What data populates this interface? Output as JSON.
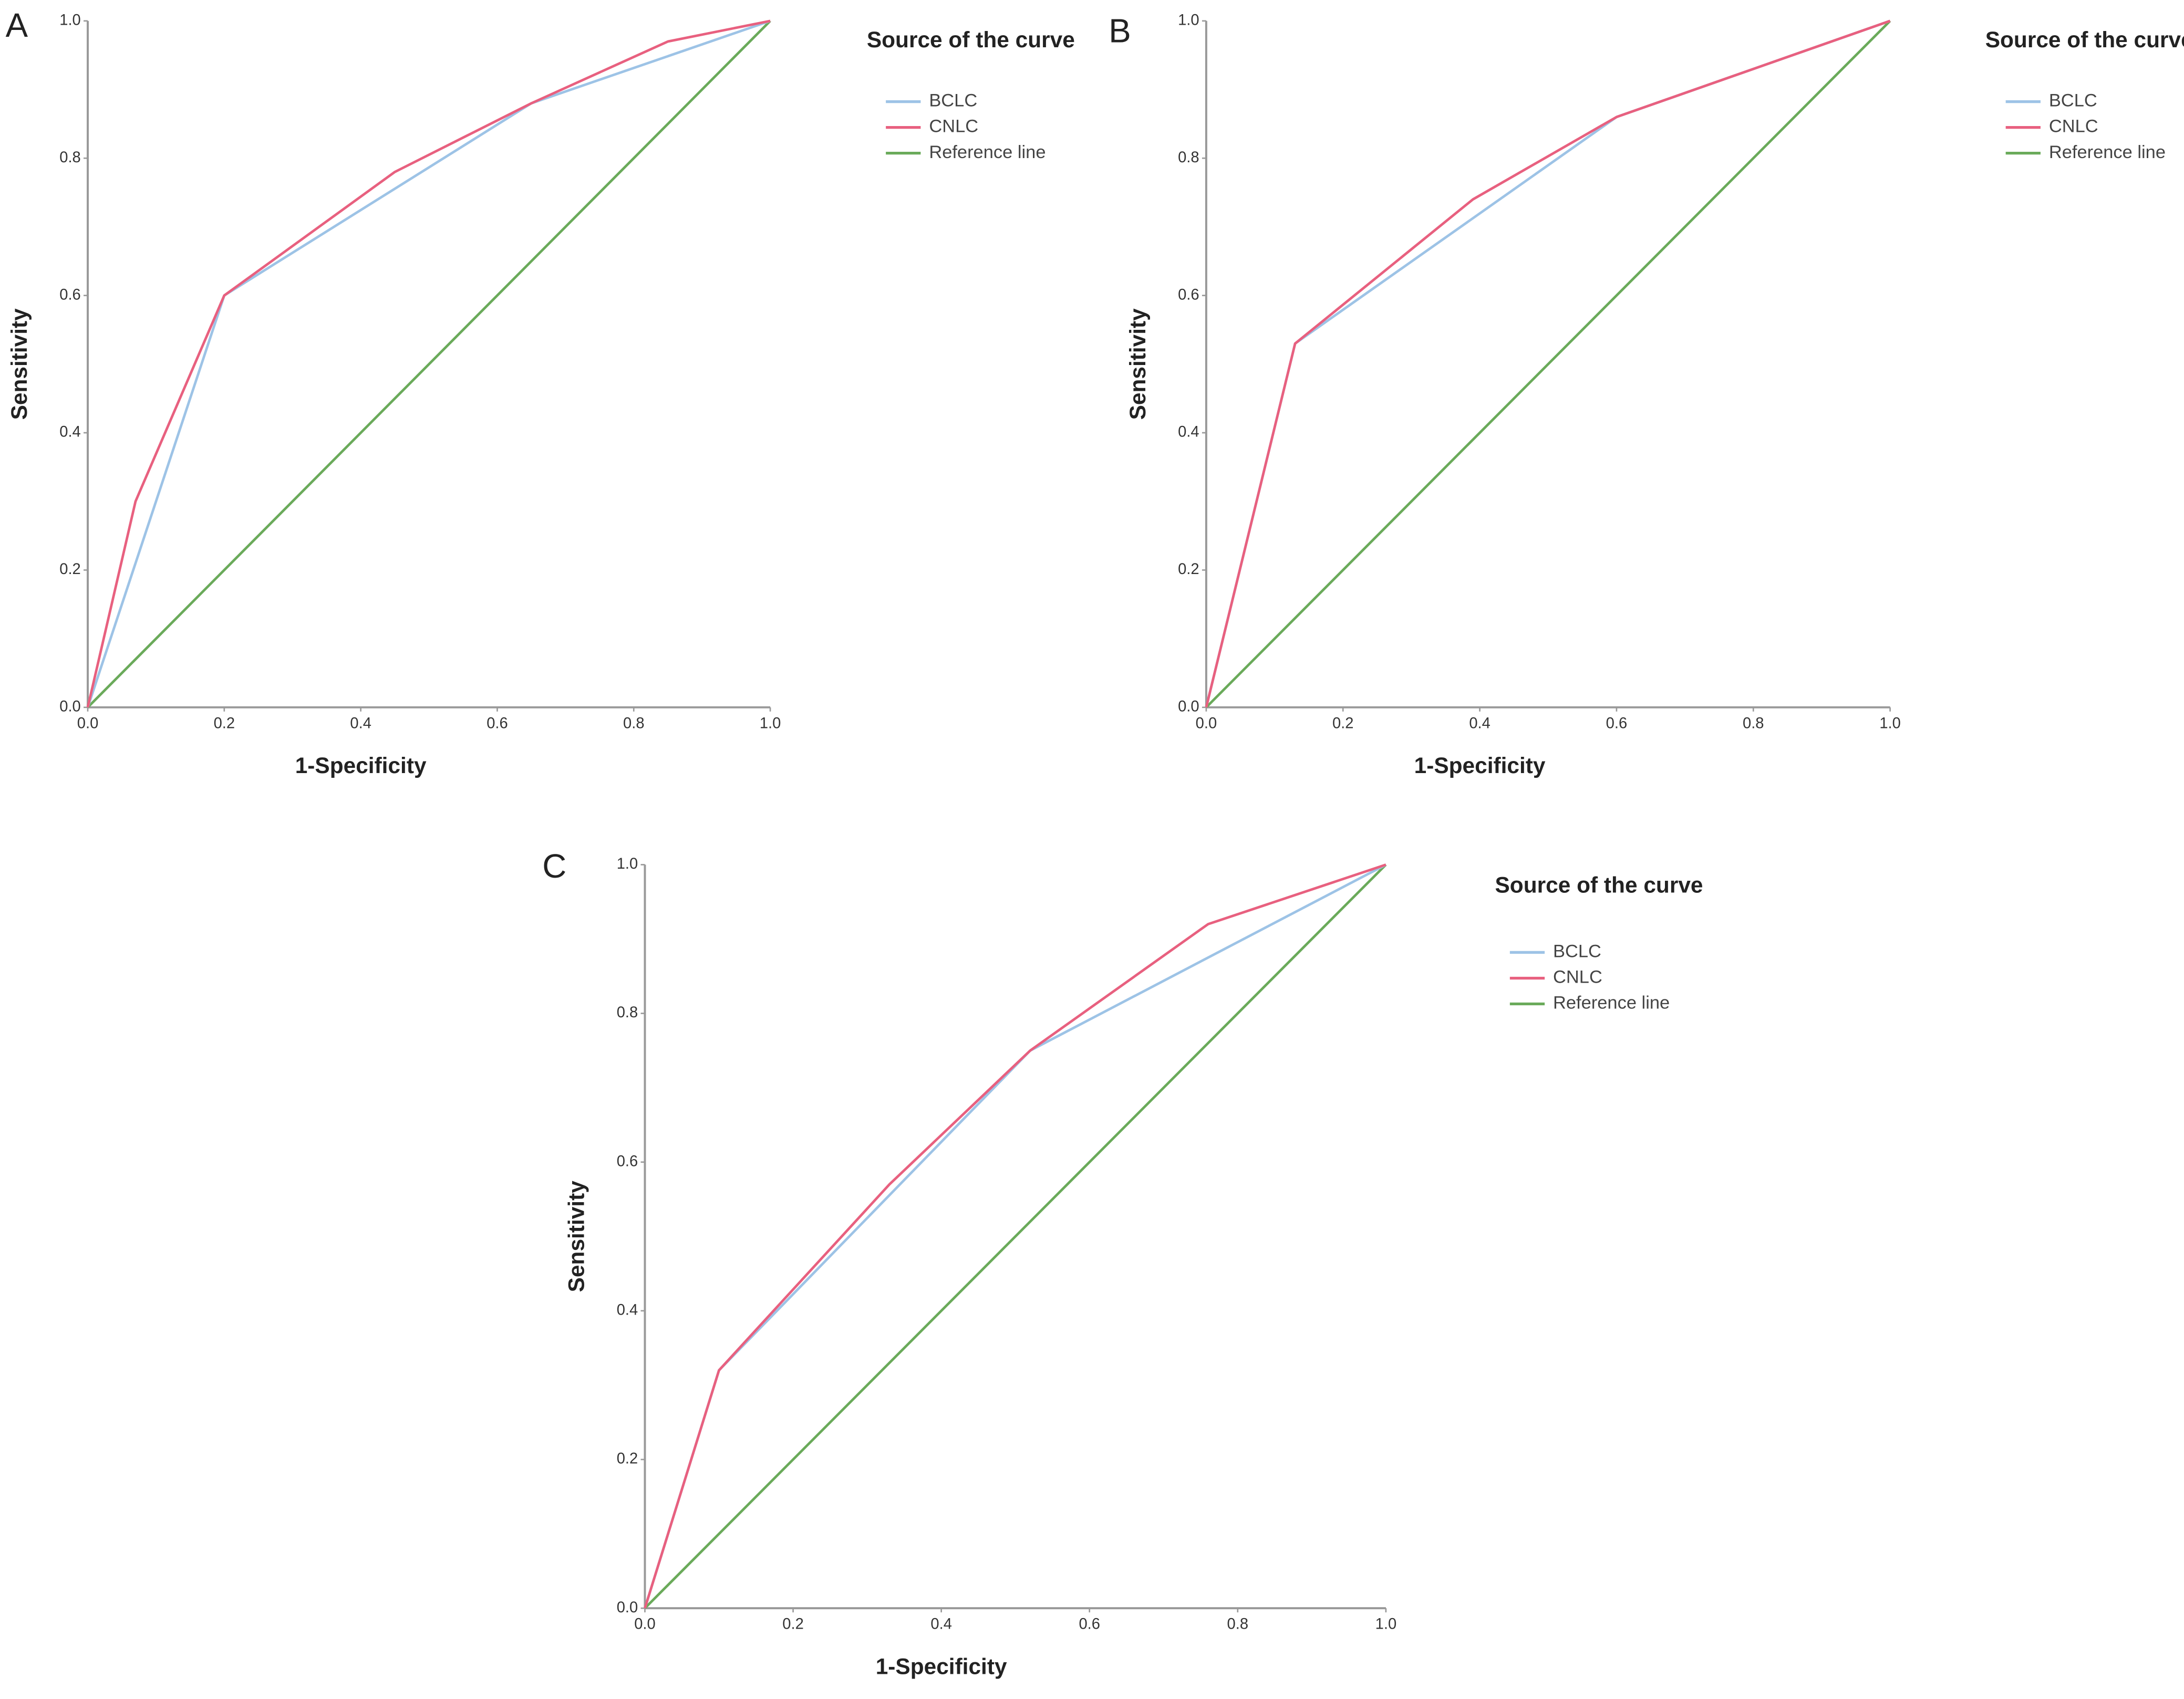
{
  "chart_data": [
    {
      "type": "line",
      "panel_label": "A",
      "x_label": "1-Specificity",
      "y_label": "Sensitivity",
      "legend_title": "Source of the curve",
      "xlim": [
        0,
        1
      ],
      "ylim": [
        0,
        1
      ],
      "xticks": [
        {
          "value": 0,
          "label": "0.0"
        },
        {
          "value": 0.2,
          "label": "0.2"
        },
        {
          "value": 0.4,
          "label": "0.4"
        },
        {
          "value": 0.6,
          "label": "0.6"
        },
        {
          "value": 0.8,
          "label": "0.8"
        },
        {
          "value": 1,
          "label": "1.0"
        }
      ],
      "yticks": [
        {
          "value": 0,
          "label": "0.0"
        },
        {
          "value": 0.2,
          "label": "0.2"
        },
        {
          "value": 0.4,
          "label": "0.4"
        },
        {
          "value": 0.6,
          "label": "0.6"
        },
        {
          "value": 0.8,
          "label": "0.8"
        },
        {
          "value": 1,
          "label": "1.0"
        }
      ],
      "series": [
        {
          "name": "BCLC",
          "color": "#9dc3e6",
          "x": [
            0,
            0.2,
            0.65,
            1
          ],
          "values": [
            0,
            0.6,
            0.88,
            1
          ]
        },
        {
          "name": "CNLC",
          "color": "#e8607f",
          "x": [
            0,
            0.07,
            0.2,
            0.45,
            0.65,
            0.85,
            1
          ],
          "values": [
            0,
            0.3,
            0.6,
            0.78,
            0.88,
            0.97,
            1
          ]
        },
        {
          "name": "Reference line",
          "color": "#6aaa5a",
          "x": [
            0,
            1
          ],
          "values": [
            0,
            1
          ]
        }
      ]
    },
    {
      "type": "line",
      "panel_label": "B",
      "x_label": "1-Specificity",
      "y_label": "Sensitivity",
      "legend_title": "Source of the curve",
      "xlim": [
        0,
        1
      ],
      "ylim": [
        0,
        1
      ],
      "xticks": [
        {
          "value": 0,
          "label": "0.0"
        },
        {
          "value": 0.2,
          "label": "0.2"
        },
        {
          "value": 0.4,
          "label": "0.4"
        },
        {
          "value": 0.6,
          "label": "0.6"
        },
        {
          "value": 0.8,
          "label": "0.8"
        },
        {
          "value": 1,
          "label": "1.0"
        }
      ],
      "yticks": [
        {
          "value": 0,
          "label": "0.0"
        },
        {
          "value": 0.2,
          "label": "0.2"
        },
        {
          "value": 0.4,
          "label": "0.4"
        },
        {
          "value": 0.6,
          "label": "0.6"
        },
        {
          "value": 0.8,
          "label": "0.8"
        },
        {
          "value": 1,
          "label": "1.0"
        }
      ],
      "series": [
        {
          "name": "BCLC",
          "color": "#9dc3e6",
          "x": [
            0,
            0.13,
            0.6,
            1
          ],
          "values": [
            0,
            0.53,
            0.86,
            1
          ]
        },
        {
          "name": "CNLC",
          "color": "#e8607f",
          "x": [
            0,
            0.13,
            0.39,
            0.6,
            1
          ],
          "values": [
            0,
            0.53,
            0.74,
            0.86,
            1
          ]
        },
        {
          "name": "Reference line",
          "color": "#6aaa5a",
          "x": [
            0,
            1
          ],
          "values": [
            0,
            1
          ]
        }
      ]
    },
    {
      "type": "line",
      "panel_label": "C",
      "x_label": "1-Specificity",
      "y_label": "Sensitivity",
      "legend_title": "Source of the curve",
      "xlim": [
        0,
        1
      ],
      "ylim": [
        0,
        1
      ],
      "xticks": [
        {
          "value": 0,
          "label": "0.0"
        },
        {
          "value": 0.2,
          "label": "0.2"
        },
        {
          "value": 0.4,
          "label": "0.4"
        },
        {
          "value": 0.6,
          "label": "0.6"
        },
        {
          "value": 0.8,
          "label": "0.8"
        },
        {
          "value": 1,
          "label": "1.0"
        }
      ],
      "yticks": [
        {
          "value": 0,
          "label": "0.0"
        },
        {
          "value": 0.2,
          "label": "0.2"
        },
        {
          "value": 0.4,
          "label": "0.4"
        },
        {
          "value": 0.6,
          "label": "0.6"
        },
        {
          "value": 0.8,
          "label": "0.8"
        },
        {
          "value": 1,
          "label": "1.0"
        }
      ],
      "series": [
        {
          "name": "BCLC",
          "color": "#9dc3e6",
          "x": [
            0,
            0.1,
            0.52,
            1
          ],
          "values": [
            0,
            0.32,
            0.75,
            1
          ]
        },
        {
          "name": "CNLC",
          "color": "#e8607f",
          "x": [
            0,
            0.1,
            0.33,
            0.52,
            0.76,
            1
          ],
          "values": [
            0,
            0.32,
            0.57,
            0.75,
            0.92,
            1
          ]
        },
        {
          "name": "Reference line",
          "color": "#6aaa5a",
          "x": [
            0,
            1
          ],
          "values": [
            0,
            1
          ]
        }
      ]
    }
  ]
}
